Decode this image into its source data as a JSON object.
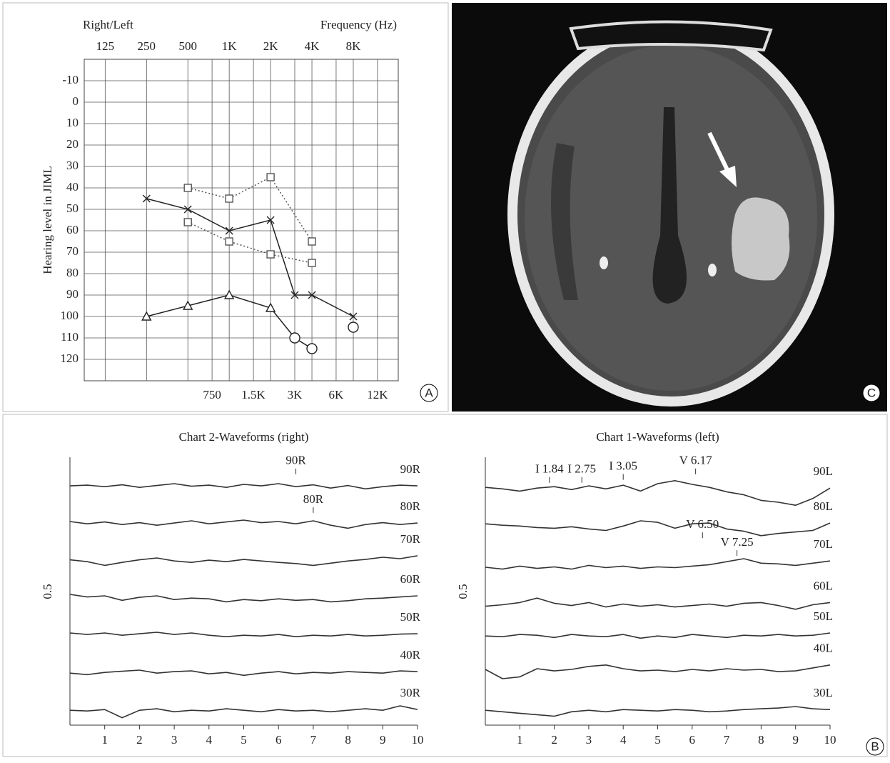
{
  "chart_data": [
    {
      "type": "line",
      "header_left": "Right/Left",
      "header_right": "Frequency (Hz)",
      "ylabel": "Hearing level in JIML",
      "xscale": "log",
      "xlim": [
        88,
        17000
      ],
      "xticks": [
        125,
        250,
        500,
        {
          "value": 1000,
          "label": "1K"
        },
        {
          "value": 2000,
          "label": "2K"
        },
        {
          "value": 4000,
          "label": "4K"
        },
        {
          "value": 8000,
          "label": "8K"
        }
      ],
      "xticks2": [
        750,
        {
          "value": 1500,
          "label": "1.5K"
        },
        {
          "value": 3000,
          "label": "3K"
        },
        {
          "value": 6000,
          "label": "6K"
        },
        {
          "value": 12000,
          "label": "12K"
        }
      ],
      "ylim": [
        -20,
        130
      ],
      "yreverse": true,
      "yticks": [
        -10,
        0,
        10,
        20,
        30,
        40,
        50,
        60,
        70,
        80,
        90,
        100,
        110,
        120
      ],
      "grid": true,
      "series": [
        {
          "color": "#222222",
          "dash": "solid",
          "marker": "cross",
          "x": [
            250,
            500,
            1000,
            2000,
            3000,
            4000,
            8000
          ],
          "values": [
            45,
            50,
            60,
            55,
            90,
            90,
            100
          ]
        },
        {
          "color": "#555555",
          "dash": "dotted",
          "marker": "square",
          "x": [
            500,
            1000,
            2000,
            4000
          ],
          "values": [
            40,
            45,
            35,
            65
          ]
        },
        {
          "color": "#555555",
          "dash": "dotted",
          "marker": "square",
          "x": [
            500,
            1000,
            2000,
            4000
          ],
          "values": [
            56,
            65,
            71,
            75
          ]
        },
        {
          "color": "#222222",
          "dash": "solid",
          "markers": [
            "triangle",
            "triangle",
            "triangle",
            "triangle",
            "circle",
            "circle"
          ],
          "x": [
            250,
            500,
            1000,
            2000,
            3000,
            4000
          ],
          "values": [
            100,
            95,
            90,
            96,
            110,
            115
          ]
        },
        {
          "color": "#222222",
          "dash": "solid",
          "marker": "circle",
          "x": [
            8000
          ],
          "values": [
            105
          ]
        }
      ]
    },
    {
      "type": "line",
      "title": "Chart 2-Waveforms (right)",
      "ylabel": "0.5",
      "x": [
        0,
        0.5,
        1,
        1.5,
        2,
        2.5,
        3,
        3.5,
        4,
        4.5,
        5,
        5.5,
        6,
        6.5,
        7,
        7.5,
        8,
        8.5,
        9,
        9.5,
        10
      ],
      "xlim": [
        0,
        10
      ],
      "xticks": [
        1,
        2,
        3,
        4,
        5,
        6,
        7,
        8,
        9,
        10
      ],
      "ylim": [
        0,
        7.5
      ],
      "series": [
        {
          "name": "90R",
          "color": "#333333",
          "values": [
            6.44,
            6.46,
            6.42,
            6.47,
            6.4,
            6.45,
            6.5,
            6.43,
            6.46,
            6.4,
            6.48,
            6.44,
            6.5,
            6.42,
            6.47,
            6.38,
            6.45,
            6.36,
            6.42,
            6.46,
            6.44
          ]
        },
        {
          "name": "80R",
          "color": "#333333",
          "values": [
            5.48,
            5.42,
            5.47,
            5.4,
            5.45,
            5.38,
            5.44,
            5.5,
            5.42,
            5.47,
            5.52,
            5.45,
            5.48,
            5.42,
            5.5,
            5.38,
            5.3,
            5.4,
            5.45,
            5.4,
            5.44
          ]
        },
        {
          "name": "70R",
          "color": "#333333",
          "values": [
            4.45,
            4.4,
            4.3,
            4.38,
            4.45,
            4.5,
            4.42,
            4.38,
            4.44,
            4.4,
            4.46,
            4.42,
            4.38,
            4.35,
            4.3,
            4.36,
            4.42,
            4.46,
            4.52,
            4.48,
            4.56
          ]
        },
        {
          "name": "60R",
          "color": "#333333",
          "values": [
            3.52,
            3.45,
            3.48,
            3.36,
            3.44,
            3.48,
            3.38,
            3.42,
            3.4,
            3.32,
            3.38,
            3.35,
            3.4,
            3.36,
            3.38,
            3.32,
            3.35,
            3.4,
            3.42,
            3.45,
            3.48
          ]
        },
        {
          "name": "50R",
          "color": "#333333",
          "values": [
            2.48,
            2.44,
            2.48,
            2.42,
            2.46,
            2.5,
            2.44,
            2.48,
            2.42,
            2.38,
            2.42,
            2.4,
            2.44,
            2.38,
            2.42,
            2.4,
            2.44,
            2.4,
            2.42,
            2.45,
            2.46
          ]
        },
        {
          "name": "40R",
          "color": "#333333",
          "values": [
            1.4,
            1.36,
            1.42,
            1.45,
            1.48,
            1.4,
            1.44,
            1.46,
            1.38,
            1.42,
            1.34,
            1.4,
            1.44,
            1.38,
            1.42,
            1.4,
            1.44,
            1.42,
            1.4,
            1.46,
            1.44
          ]
        },
        {
          "name": "30R",
          "color": "#333333",
          "values": [
            0.4,
            0.38,
            0.42,
            0.2,
            0.4,
            0.44,
            0.36,
            0.4,
            0.38,
            0.44,
            0.4,
            0.36,
            0.42,
            0.38,
            0.4,
            0.36,
            0.4,
            0.44,
            0.4,
            0.52,
            0.42
          ]
        }
      ],
      "annotations": [
        {
          "text": "90R",
          "x": 6.5,
          "y": 7.1
        },
        {
          "text": "80R",
          "x": 7.0,
          "y": 6.06
        }
      ]
    },
    {
      "type": "line",
      "title": "Chart 1-Waveforms (left)",
      "ylabel": "0.5",
      "x": [
        0,
        0.5,
        1,
        1.5,
        2,
        2.5,
        3,
        3.5,
        4,
        4.5,
        5,
        5.5,
        6,
        6.5,
        7,
        7.5,
        8,
        8.5,
        9,
        9.5,
        10
      ],
      "xlim": [
        0,
        10
      ],
      "xticks": [
        1,
        2,
        3,
        4,
        5,
        6,
        7,
        8,
        9,
        10
      ],
      "ylim": [
        0,
        7.5
      ],
      "series": [
        {
          "name": "90L",
          "color": "#333333",
          "values": [
            6.4,
            6.36,
            6.3,
            6.38,
            6.42,
            6.34,
            6.44,
            6.36,
            6.46,
            6.3,
            6.5,
            6.58,
            6.48,
            6.4,
            6.28,
            6.2,
            6.05,
            6.0,
            5.92,
            6.1,
            6.38
          ]
        },
        {
          "name": "80L",
          "color": "#333333",
          "values": [
            5.42,
            5.38,
            5.36,
            5.32,
            5.3,
            5.34,
            5.28,
            5.24,
            5.36,
            5.5,
            5.46,
            5.3,
            5.42,
            5.44,
            5.28,
            5.22,
            5.1,
            5.16,
            5.2,
            5.24,
            5.44
          ]
        },
        {
          "name": "70L",
          "color": "#333333",
          "values": [
            4.25,
            4.2,
            4.28,
            4.22,
            4.26,
            4.2,
            4.3,
            4.24,
            4.28,
            4.22,
            4.26,
            4.24,
            4.28,
            4.32,
            4.4,
            4.48,
            4.36,
            4.34,
            4.3,
            4.36,
            4.42
          ]
        },
        {
          "name": "60L",
          "color": "#333333",
          "values": [
            3.2,
            3.24,
            3.3,
            3.42,
            3.28,
            3.22,
            3.3,
            3.18,
            3.26,
            3.2,
            3.24,
            3.18,
            3.22,
            3.26,
            3.2,
            3.28,
            3.3,
            3.22,
            3.12,
            3.24,
            3.3
          ]
        },
        {
          "name": "50L",
          "color": "#333333",
          "values": [
            2.4,
            2.38,
            2.44,
            2.42,
            2.36,
            2.44,
            2.4,
            2.38,
            2.44,
            2.34,
            2.4,
            2.36,
            2.44,
            2.4,
            2.36,
            2.42,
            2.4,
            2.44,
            2.4,
            2.42,
            2.48
          ]
        },
        {
          "name": "40L",
          "color": "#333333",
          "values": [
            1.5,
            1.25,
            1.3,
            1.52,
            1.46,
            1.5,
            1.58,
            1.62,
            1.52,
            1.46,
            1.48,
            1.44,
            1.5,
            1.46,
            1.52,
            1.48,
            1.5,
            1.44,
            1.46,
            1.54,
            1.62
          ]
        },
        {
          "name": "30L",
          "color": "#333333",
          "values": [
            0.4,
            0.36,
            0.32,
            0.28,
            0.24,
            0.36,
            0.4,
            0.36,
            0.42,
            0.4,
            0.38,
            0.42,
            0.4,
            0.36,
            0.38,
            0.42,
            0.44,
            0.46,
            0.5,
            0.44,
            0.42
          ]
        }
      ],
      "annotations": [
        {
          "text": "I 1.84",
          "x": 1.86,
          "y": 6.87
        },
        {
          "text": "I 2.75",
          "x": 2.8,
          "y": 6.87
        },
        {
          "text": "I 3.05",
          "x": 4.0,
          "y": 6.95
        },
        {
          "text": "V 6.17",
          "x": 6.1,
          "y": 7.1
        },
        {
          "text": "V 6.50",
          "x": 6.3,
          "y": 5.38
        },
        {
          "text": "V 7.25",
          "x": 7.3,
          "y": 4.9
        }
      ]
    }
  ],
  "panel_labels": [
    "A",
    "B",
    "C"
  ]
}
